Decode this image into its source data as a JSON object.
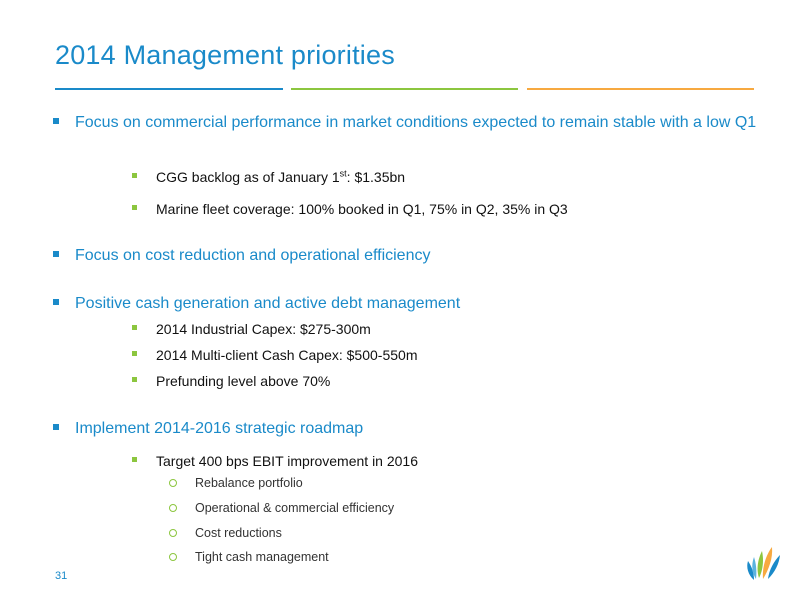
{
  "title": "2014 Management priorities",
  "colors": {
    "accent_blue": "#1A8AC9",
    "accent_green": "#8CC63F",
    "accent_orange": "#F7A940"
  },
  "bullets": [
    {
      "text": "Focus on commercial performance in market conditions expected to remain stable with a low Q1",
      "sub": [
        {
          "pre": "CGG backlog as of January 1",
          "sup": "st",
          "post": ": $1.35bn"
        },
        {
          "text": "Marine fleet coverage: 100% booked in Q1, 75% in Q2, 35% in Q3"
        }
      ]
    },
    {
      "text": "Focus on cost reduction and operational efficiency"
    },
    {
      "text": "Positive cash generation and active debt management",
      "sub": [
        {
          "text": "2014 Industrial Capex: $275-300m"
        },
        {
          "text": "2014 Multi-client Cash Capex: $500-550m"
        },
        {
          "text": "Prefunding level above 70%"
        }
      ]
    },
    {
      "text": "Implement 2014-2016 strategic roadmap",
      "sub": [
        {
          "text": "Target 400 bps EBIT improvement in 2016",
          "sub": [
            "Rebalance portfolio",
            "Operational & commercial efficiency",
            "Cost reductions",
            "Tight cash management"
          ]
        }
      ]
    }
  ],
  "page_number": "31",
  "logo_icon": "cgg-logo-icon"
}
